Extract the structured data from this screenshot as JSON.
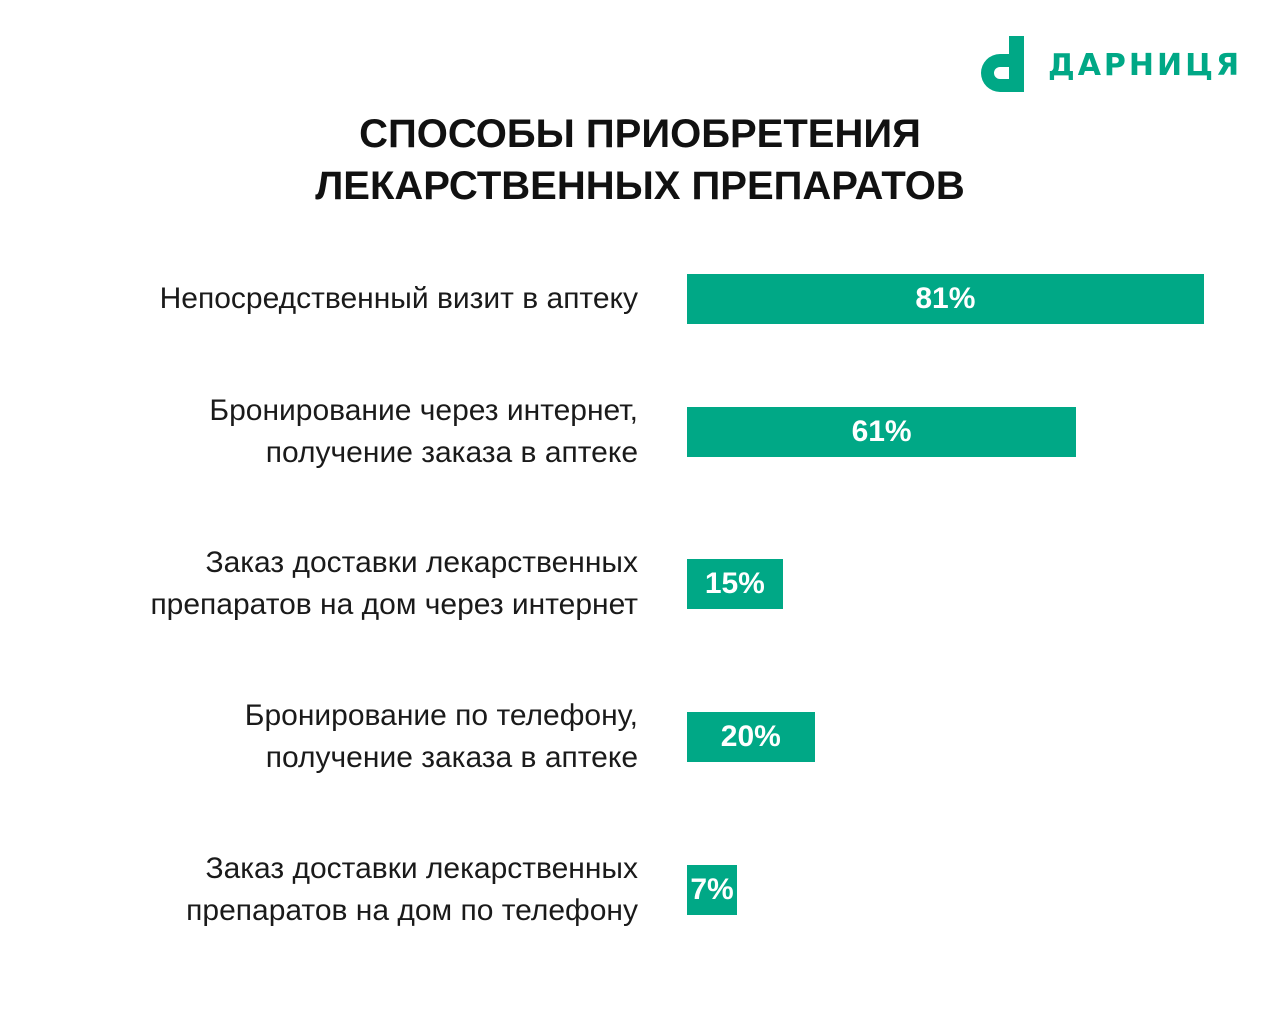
{
  "logo": {
    "text": "ДАРНИЦЯ",
    "color": "#00a886"
  },
  "chart_data": {
    "type": "bar",
    "orientation": "horizontal",
    "title": "СПОСОБЫ ПРИОБРЕТЕНИЯ\nЛЕКАРСТВЕННЫХ ПРЕПАРАТОВ",
    "title_lines": [
      "СПОСОБЫ ПРИОБРЕТЕНИЯ",
      "ЛЕКАРСТВЕННЫХ ПРЕПАРАТОВ"
    ],
    "categories": [
      [
        "Непосредственный визит в аптеку"
      ],
      [
        "Бронирование через интернет,",
        "получение заказа в аптеке"
      ],
      [
        "Заказ доставки лекарственных",
        "препаратов на дом через интернет"
      ],
      [
        "Бронирование по телефону,",
        "получение заказа в аптеке"
      ],
      [
        "Заказ доставки лекарственных",
        "препаратов на дом по телефону"
      ]
    ],
    "values": [
      81,
      61,
      15,
      20,
      7
    ],
    "data_labels": [
      "81%",
      "61%",
      "15%",
      "20%",
      "7%"
    ],
    "unit": "%",
    "bar_color": "#00a886",
    "grid": false,
    "legend": "none"
  }
}
